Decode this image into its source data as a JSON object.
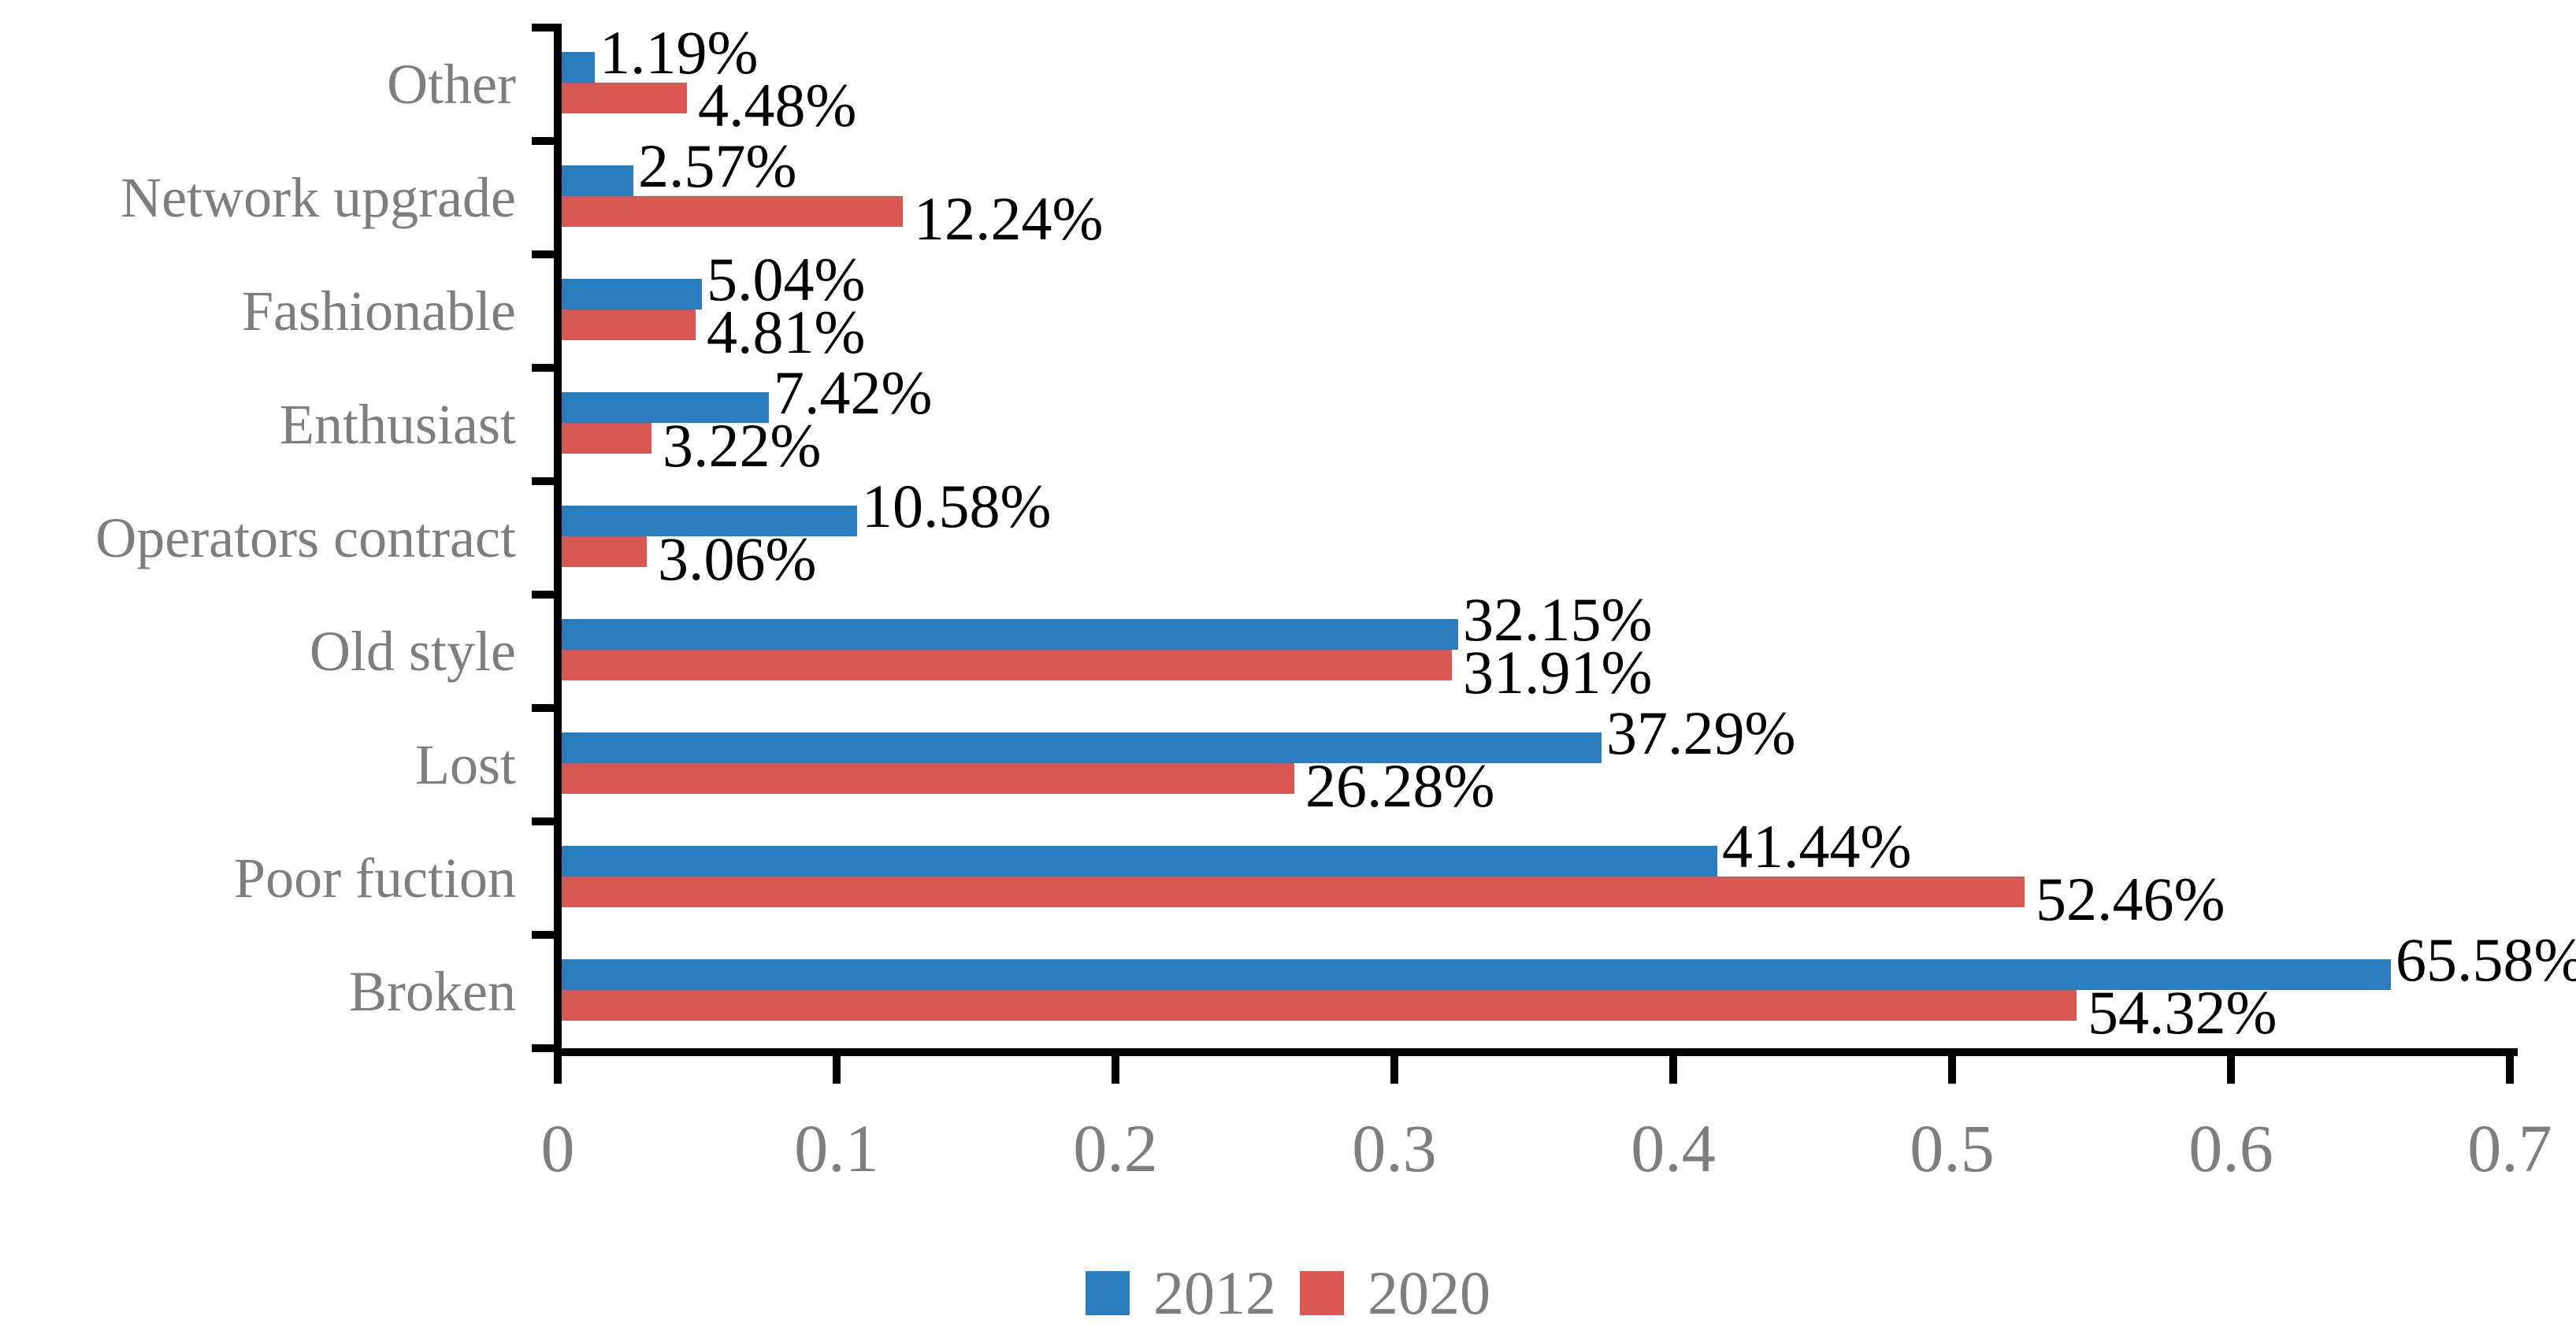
{
  "chart_data": {
    "type": "bar",
    "orientation": "horizontal",
    "title": "",
    "xlabel": "",
    "ylabel": "",
    "xlim": [
      0,
      0.7
    ],
    "grid": false,
    "legend_position": "bottom-center",
    "x_ticks": [
      "0",
      "0.1",
      "0.2",
      "0.3",
      "0.4",
      "0.5",
      "0.6",
      "0.7"
    ],
    "x_tick_values": [
      0,
      0.1,
      0.2,
      0.3,
      0.4,
      0.5,
      0.6,
      0.7
    ],
    "categories_top_to_bottom": [
      "Other",
      "Network upgrade",
      "Fashionable",
      "Enthusiast",
      "Operators contract",
      "Old style",
      "Lost",
      "Poor fuction",
      "Broken"
    ],
    "series": [
      {
        "name": "2012",
        "color": "#2b7ebd",
        "values": [
          0.0119,
          0.0257,
          0.0504,
          0.0742,
          0.1058,
          0.3215,
          0.3729,
          0.4144,
          0.6558
        ],
        "labels": [
          "1.19%",
          "2.57%",
          "5.04%",
          "7.42%",
          "10.58%",
          "32.15%",
          "37.29%",
          "41.44%",
          "65.58%"
        ]
      },
      {
        "name": "2020",
        "color": "#d95854",
        "values": [
          0.0448,
          0.1224,
          0.0481,
          0.0322,
          0.0306,
          0.3191,
          0.2628,
          0.5246,
          0.5432
        ],
        "labels": [
          "4.48%",
          "12.24%",
          "4.81%",
          "3.22%",
          "3.06%",
          "31.91%",
          "26.28%",
          "52.46%",
          "54.32%"
        ]
      }
    ]
  },
  "legend": {
    "items": [
      {
        "label": "2012",
        "color": "#2b7ebd"
      },
      {
        "label": "2020",
        "color": "#d95854"
      }
    ]
  },
  "colors": {
    "axis": "#000000",
    "value_label": "#000000",
    "axis_text": "#7e7e7e",
    "background": "#ffffff"
  }
}
